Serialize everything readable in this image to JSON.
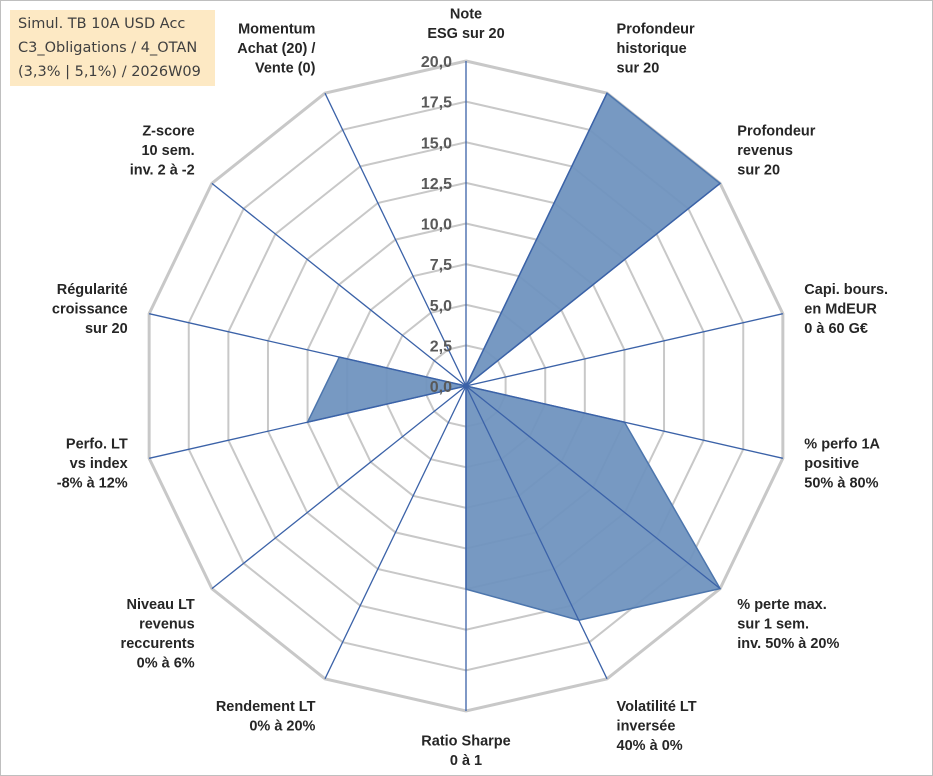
{
  "title_box": {
    "line1": "Simul. TB 10A USD Acc",
    "line2": "C3_Obligations / 4_OTAN",
    "line3": "(3,3% | 5,1%) / 2026W09"
  },
  "chart_data": {
    "type": "radar",
    "rmin": 0,
    "rmax": 20,
    "tick_labels": [
      "0,0",
      "2,5",
      "5,0",
      "7,5",
      "10,0",
      "12,5",
      "15,0",
      "17,5",
      "20,0"
    ],
    "categories": [
      [
        "Note",
        "ESG sur 20"
      ],
      [
        "Profondeur",
        "historique",
        "sur 20"
      ],
      [
        "Profondeur",
        "revenus",
        "sur 20"
      ],
      [
        "Capi. bours.",
        "en MdEUR",
        "0 à 60 G€"
      ],
      [
        "% perfo 1A",
        "positive",
        "50% à 80%"
      ],
      [
        "% perte max.",
        "sur 1 sem.",
        "inv. 50% à 20%"
      ],
      [
        "Volatilité LT",
        "inversée",
        "40% à 0%"
      ],
      [
        "Ratio Sharpe",
        "0 à 1"
      ],
      [
        "Rendement LT",
        "0% à 20%"
      ],
      [
        "Niveau LT",
        "revenus",
        "reccurents",
        "0% à 6%"
      ],
      [
        "Perfo. LT",
        "vs index",
        "-8% à 12%"
      ],
      [
        "Régularité",
        "croissance",
        "sur 20"
      ],
      [
        "Z-score",
        "10 sem.",
        "inv. 2 à -2"
      ],
      [
        "Momentum",
        "Achat (20) /",
        "Vente (0)"
      ]
    ],
    "series": [
      {
        "values": [
          0,
          20,
          20,
          0,
          10,
          20,
          16,
          12.5,
          0,
          0,
          10,
          8,
          0,
          0
        ]
      }
    ],
    "colors": {
      "fill": "#7094bf",
      "stroke": "#4d76ad",
      "spoke": "#3b62a8",
      "grid": "#c8c8c8"
    },
    "grid": true,
    "legend": "none"
  }
}
